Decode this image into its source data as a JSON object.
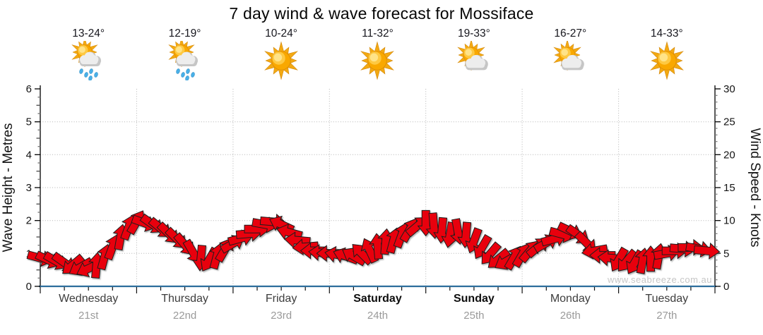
{
  "title": "7 day wind & wave forecast for Mossiface",
  "watermark": "www.seabreeze.com.au",
  "days": [
    {
      "name": "Wednesday",
      "date": "21st",
      "temp": "13-24°",
      "icon": "sun-cloud-rain",
      "bold": false
    },
    {
      "name": "Thursday",
      "date": "22nd",
      "temp": "12-19°",
      "icon": "sun-cloud-rain",
      "bold": false
    },
    {
      "name": "Friday",
      "date": "23rd",
      "temp": "10-24°",
      "icon": "sunny",
      "bold": false
    },
    {
      "name": "Saturday",
      "date": "24th",
      "temp": "11-32°",
      "icon": "sunny",
      "bold": true
    },
    {
      "name": "Sunday",
      "date": "25th",
      "temp": "19-33°",
      "icon": "sun-cloud",
      "bold": true
    },
    {
      "name": "Monday",
      "date": "26th",
      "temp": "16-27°",
      "icon": "sun-cloud",
      "bold": false
    },
    {
      "name": "Tuesday",
      "date": "27th",
      "temp": "14-33°",
      "icon": "sunny",
      "bold": false
    }
  ],
  "left_axis": {
    "label": "Wave Height - Metres",
    "min": 0,
    "max": 6,
    "ticks": [
      0,
      1,
      2,
      3,
      4,
      5,
      6
    ]
  },
  "right_axis": {
    "label": "Wind Speed - Knots",
    "min": 0,
    "max": 30,
    "ticks": [
      0,
      5,
      10,
      15,
      20,
      25,
      30
    ]
  },
  "colors": {
    "arrow": "#e80309",
    "arrow_outline": "#1f1f1f",
    "axis_bottom": "#2d6e9c",
    "grid": "#b3b3b3",
    "watermark": "#c6c6c6",
    "date_text": "#9a9a9a",
    "background": "#ffffff"
  },
  "chart_data": {
    "type": "wind-arrows",
    "title": "7 day wind & wave forecast for Mossiface",
    "categories": [
      "Wednesday 21st",
      "Thursday 22nd",
      "Friday 23rd",
      "Saturday 24th",
      "Sunday 25th",
      "Monday 26th",
      "Tuesday 27th"
    ],
    "y_left": {
      "label": "Wave Height - Metres",
      "range": [
        0,
        6
      ]
    },
    "y_right": {
      "label": "Wind Speed - Knots",
      "range": [
        0,
        30
      ]
    },
    "grid": true,
    "legend": "none",
    "point_format": [
      "hour_from_start",
      "wind_speed_knots",
      "arrow_direction_deg_screen_cw_from_east"
    ],
    "points": [
      [
        0,
        4.3,
        15
      ],
      [
        2,
        4.0,
        25
      ],
      [
        4,
        3.8,
        30
      ],
      [
        6,
        3.6,
        35
      ],
      [
        8,
        3.2,
        140
      ],
      [
        10,
        2.9,
        150
      ],
      [
        12,
        2.7,
        155
      ],
      [
        14,
        3.2,
        275
      ],
      [
        16,
        4.5,
        285
      ],
      [
        18,
        6.0,
        290
      ],
      [
        20,
        7.5,
        280
      ],
      [
        22,
        9.0,
        290
      ],
      [
        24,
        9.8,
        300
      ],
      [
        26,
        9.6,
        20
      ],
      [
        28,
        9.4,
        35
      ],
      [
        30,
        8.8,
        40
      ],
      [
        32,
        8.0,
        45
      ],
      [
        34,
        7.2,
        45
      ],
      [
        36,
        6.3,
        50
      ],
      [
        38,
        5.2,
        60
      ],
      [
        40,
        4.3,
        95
      ],
      [
        42,
        4.0,
        120
      ],
      [
        44,
        4.6,
        285
      ],
      [
        46,
        5.6,
        300
      ],
      [
        48,
        6.5,
        330
      ],
      [
        50,
        7.3,
        345
      ],
      [
        52,
        8.0,
        355
      ],
      [
        54,
        8.7,
        0
      ],
      [
        56,
        9.4,
        10
      ],
      [
        58,
        9.8,
        5
      ],
      [
        60,
        9.4,
        205
      ],
      [
        62,
        8.2,
        195
      ],
      [
        64,
        7.0,
        185
      ],
      [
        66,
        6.0,
        175
      ],
      [
        68,
        5.4,
        180
      ],
      [
        70,
        5.1,
        185
      ],
      [
        72,
        5.0,
        180
      ],
      [
        74,
        4.8,
        190
      ],
      [
        76,
        4.6,
        200
      ],
      [
        78,
        4.6,
        210
      ],
      [
        80,
        5.0,
        225
      ],
      [
        82,
        5.5,
        245
      ],
      [
        84,
        6.1,
        265
      ],
      [
        86,
        6.8,
        275
      ],
      [
        88,
        7.0,
        285
      ],
      [
        90,
        7.8,
        290
      ],
      [
        92,
        8.6,
        300
      ],
      [
        94,
        9.2,
        320
      ],
      [
        96,
        9.6,
        90
      ],
      [
        98,
        9.2,
        85
      ],
      [
        100,
        8.5,
        95
      ],
      [
        102,
        7.8,
        100
      ],
      [
        104,
        8.3,
        80
      ],
      [
        106,
        7.8,
        95
      ],
      [
        108,
        6.9,
        110
      ],
      [
        110,
        5.9,
        120
      ],
      [
        112,
        4.9,
        130
      ],
      [
        114,
        4.1,
        140
      ],
      [
        116,
        3.8,
        150
      ],
      [
        118,
        4.4,
        300
      ],
      [
        120,
        4.8,
        300
      ],
      [
        122,
        5.4,
        310
      ],
      [
        124,
        6.0,
        320
      ],
      [
        126,
        6.6,
        330
      ],
      [
        128,
        7.2,
        345
      ],
      [
        130,
        7.9,
        15
      ],
      [
        132,
        8.4,
        25
      ],
      [
        134,
        7.8,
        35
      ],
      [
        136,
        6.6,
        45
      ],
      [
        138,
        5.4,
        170
      ],
      [
        140,
        4.7,
        180
      ],
      [
        142,
        4.3,
        185
      ],
      [
        144,
        4.0,
        120
      ],
      [
        146,
        3.8,
        130
      ],
      [
        148,
        3.6,
        120
      ],
      [
        150,
        3.9,
        280
      ],
      [
        152,
        4.2,
        270
      ],
      [
        154,
        4.6,
        280
      ],
      [
        156,
        5.0,
        350
      ],
      [
        158,
        5.4,
        0
      ],
      [
        160,
        5.7,
        5
      ],
      [
        162,
        5.9,
        0
      ],
      [
        164,
        5.7,
        10
      ],
      [
        166,
        5.4,
        5
      ]
    ]
  }
}
